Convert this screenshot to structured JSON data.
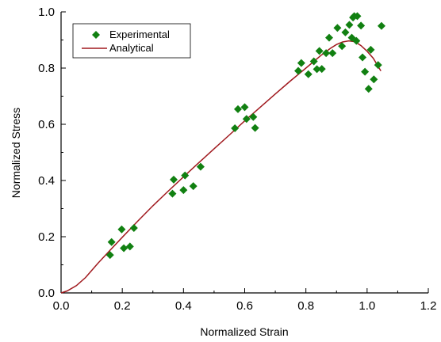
{
  "chart_data": {
    "type": "scatter",
    "xlabel": "Normalized Strain",
    "ylabel": "Normalized Stress",
    "xlim": [
      0.0,
      1.2
    ],
    "ylim": [
      0.0,
      1.0
    ],
    "xticks": [
      0.0,
      0.2,
      0.4,
      0.6,
      0.8,
      1.0,
      1.2
    ],
    "yticks": [
      0.0,
      0.2,
      0.4,
      0.6,
      0.8,
      1.0
    ],
    "xtick_labels": [
      "0.0",
      "0.2",
      "0.4",
      "0.6",
      "0.8",
      "1.0",
      "1.2"
    ],
    "ytick_labels": [
      "0.0",
      "0.2",
      "0.4",
      "0.6",
      "0.8",
      "1.0"
    ],
    "grid": false,
    "legend_position": "top-left",
    "series": [
      {
        "name": "Experimental",
        "kind": "scatter",
        "marker": "diamond",
        "color": "#118011",
        "x": [
          0.16,
          0.165,
          0.198,
          0.205,
          0.225,
          0.238,
          0.364,
          0.368,
          0.4,
          0.405,
          0.432,
          0.456,
          0.568,
          0.578,
          0.6,
          0.606,
          0.628,
          0.634,
          0.775,
          0.785,
          0.808,
          0.826,
          0.836,
          0.844,
          0.852,
          0.866,
          0.876,
          0.887,
          0.903,
          0.918,
          0.929,
          0.942,
          0.95,
          0.954,
          0.958,
          0.965,
          0.968,
          0.98,
          0.985,
          0.993,
          1.005,
          1.012,
          1.022,
          1.036,
          1.047
        ],
        "y": [
          0.135,
          0.181,
          0.226,
          0.159,
          0.165,
          0.231,
          0.353,
          0.403,
          0.366,
          0.418,
          0.38,
          0.449,
          0.586,
          0.654,
          0.661,
          0.619,
          0.626,
          0.587,
          0.79,
          0.818,
          0.778,
          0.824,
          0.796,
          0.861,
          0.797,
          0.853,
          0.908,
          0.853,
          0.943,
          0.878,
          0.927,
          0.954,
          0.908,
          0.98,
          0.985,
          0.897,
          0.985,
          0.951,
          0.838,
          0.787,
          0.726,
          0.865,
          0.76,
          0.811,
          0.95
        ]
      },
      {
        "name": "Analytical",
        "kind": "line",
        "color": "#a0191e",
        "x": [
          0.0,
          0.02,
          0.05,
          0.08,
          0.1,
          0.12,
          0.15,
          0.2,
          0.25,
          0.3,
          0.35,
          0.4,
          0.45,
          0.5,
          0.55,
          0.6,
          0.65,
          0.7,
          0.75,
          0.8,
          0.85,
          0.88,
          0.9,
          0.92,
          0.94,
          0.96,
          0.98,
          1.0,
          1.02,
          1.045
        ],
        "y": [
          0.0,
          0.007,
          0.026,
          0.055,
          0.08,
          0.105,
          0.14,
          0.198,
          0.255,
          0.31,
          0.362,
          0.413,
          0.463,
          0.513,
          0.562,
          0.612,
          0.66,
          0.708,
          0.755,
          0.8,
          0.846,
          0.87,
          0.884,
          0.893,
          0.897,
          0.894,
          0.88,
          0.86,
          0.835,
          0.79
        ]
      }
    ]
  }
}
